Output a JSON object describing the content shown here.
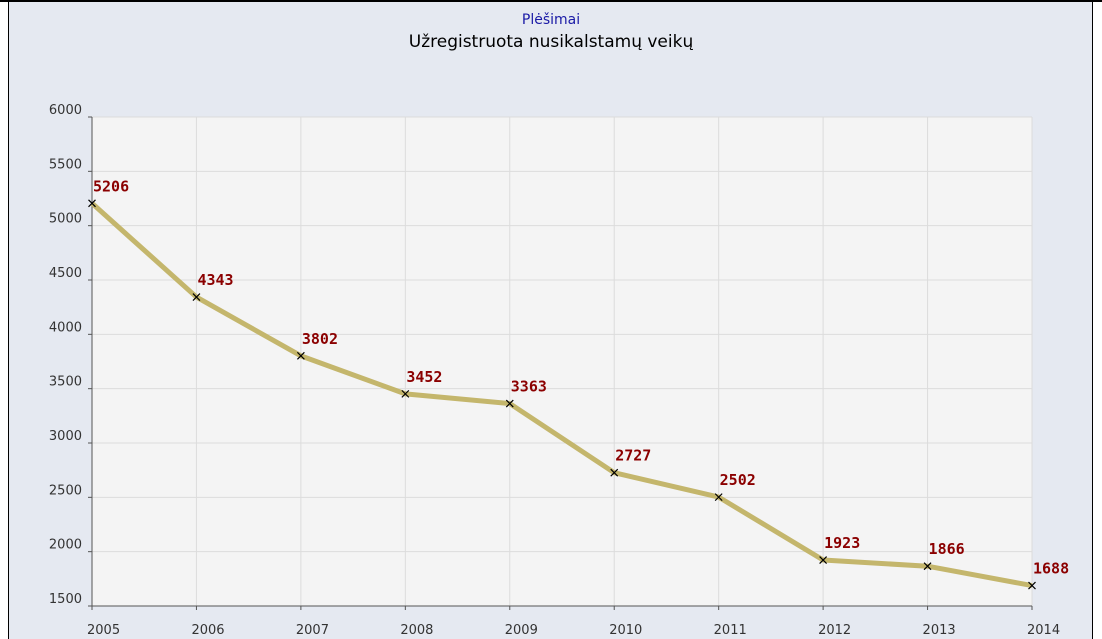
{
  "chart_data": {
    "type": "line",
    "subtitle": "Plėšimai",
    "title": "Užregistruota nusikalstamų veikų",
    "x": [
      2005,
      2006,
      2007,
      2008,
      2009,
      2010,
      2011,
      2012,
      2013,
      2014
    ],
    "values": [
      5206,
      4343,
      3802,
      3452,
      3363,
      2727,
      2502,
      1923,
      1866,
      1688
    ],
    "color": "#c4b66c",
    "xlim": [
      2005,
      2014
    ],
    "xticks": [
      2005,
      2006,
      2007,
      2008,
      2009,
      2010,
      2011,
      2012,
      2013,
      2014
    ],
    "ylim": [
      1500,
      6000
    ],
    "yticks": [
      1500,
      2000,
      2500,
      3000,
      3500,
      4000,
      4500,
      5000,
      5500,
      6000
    ],
    "grid": true
  }
}
